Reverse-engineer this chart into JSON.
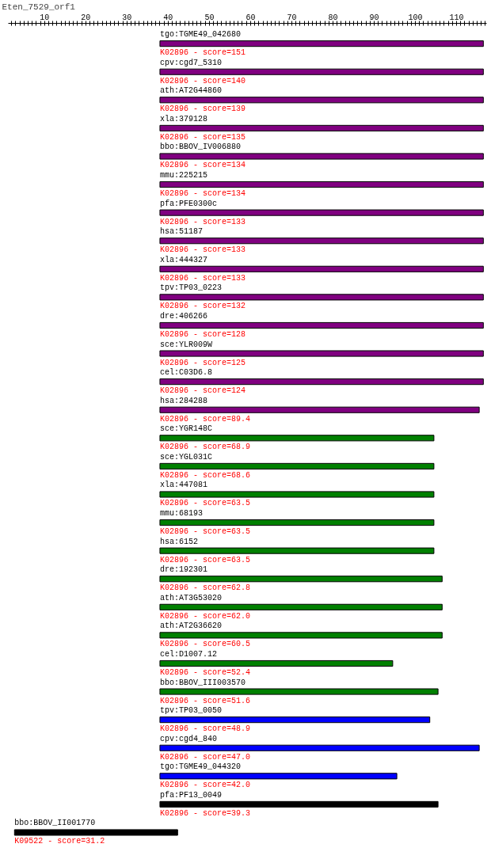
{
  "chart_data": {
    "type": "bar",
    "orientation": "horizontal",
    "title": "Eten_7529_orf1",
    "categories": [
      "tgo:TGME49_042680",
      "cpv:cgd7_5310",
      "ath:AT2G44860",
      "xla:379128",
      "bbo:BBOV_IV006880",
      "mmu:225215",
      "pfa:PFE0300c",
      "hsa:51187",
      "xla:444327",
      "tpv:TP03_0223",
      "dre:406266",
      "sce:YLR009W",
      "cel:C03D6.8",
      "hsa:284288",
      "sce:YGR148C",
      "sce:YGL031C",
      "xla:447081",
      "mmu:68193",
      "hsa:6152",
      "dre:192301",
      "ath:AT3G53020",
      "ath:AT2G36620",
      "cel:D1007.12",
      "bbo:BBOV_III003570",
      "tpv:TP03_0050",
      "cpv:cgd4_840",
      "tgo:TGME49_044320",
      "pfa:PF13_0049",
      "bbo:BBOV_II001770"
    ],
    "base": [
      38,
      38,
      38,
      38,
      38,
      38,
      38,
      38,
      38,
      38,
      38,
      38,
      38,
      38,
      38,
      38,
      38,
      38,
      38,
      38,
      38,
      38,
      38,
      38,
      38,
      38,
      38,
      38,
      2.7
    ],
    "values": [
      78.5,
      78.5,
      78.5,
      78.5,
      78.5,
      78.5,
      78.5,
      78.5,
      78.5,
      78.5,
      78.5,
      78.5,
      78.5,
      77.5,
      66.5,
      66.5,
      66.5,
      66.5,
      66.5,
      68.5,
      68.5,
      68.5,
      56.5,
      67.5,
      65.5,
      77.5,
      57.5,
      67.5,
      39.6
    ],
    "colors": [
      "#800080",
      "#800080",
      "#800080",
      "#800080",
      "#800080",
      "#800080",
      "#800080",
      "#800080",
      "#800080",
      "#800080",
      "#800080",
      "#800080",
      "#800080",
      "#800080",
      "#008000",
      "#008000",
      "#008000",
      "#008000",
      "#008000",
      "#008000",
      "#008000",
      "#008000",
      "#008000",
      "#008000",
      "#0000ff",
      "#0000ff",
      "#0000ff",
      "#000000",
      "#000000"
    ],
    "value_labels": [
      "K02896 - score=151",
      "K02896 - score=140",
      "K02896 - score=139",
      "K02896 - score=135",
      "K02896 - score=134",
      "K02896 - score=134",
      "K02896 - score=133",
      "K02896 - score=133",
      "K02896 - score=133",
      "K02896 - score=132",
      "K02896 - score=128",
      "K02896 - score=125",
      "K02896 - score=124",
      "K02896 - score=89.4",
      "K02896 - score=68.9",
      "K02896 - score=68.6",
      "K02896 - score=63.5",
      "K02896 - score=63.5",
      "K02896 - score=63.5",
      "K02896 - score=62.8",
      "K02896 - score=62.0",
      "K02896 - score=60.5",
      "K02896 - score=52.4",
      "K02896 - score=51.6",
      "K02896 - score=48.9",
      "K02896 - score=47.0",
      "K02896 - score=42.0",
      "K02896 - score=39.3",
      "K09522 - score=31.2"
    ],
    "xlim": [
      1.2,
      117.3
    ],
    "xticks": [
      {
        "value": 2,
        "label": null
      },
      {
        "value": 3,
        "label": null
      },
      {
        "value": 4,
        "label": null
      },
      {
        "value": 5,
        "label": null
      },
      {
        "value": 6,
        "label": null
      },
      {
        "value": 7,
        "label": null
      },
      {
        "value": 8,
        "label": null
      },
      {
        "value": 9,
        "label": null
      },
      10,
      {
        "value": 11,
        "label": null
      },
      {
        "value": 12,
        "label": null
      },
      {
        "value": 13,
        "label": null
      },
      {
        "value": 14,
        "label": null
      },
      {
        "value": 15,
        "label": null
      },
      {
        "value": 16,
        "label": null
      },
      {
        "value": 17,
        "label": null
      },
      {
        "value": 18,
        "label": null
      },
      {
        "value": 19,
        "label": null
      },
      20,
      {
        "value": 21,
        "label": null
      },
      {
        "value": 22,
        "label": null
      },
      {
        "value": 23,
        "label": null
      },
      {
        "value": 24,
        "label": null
      },
      {
        "value": 25,
        "label": null
      },
      {
        "value": 26,
        "label": null
      },
      {
        "value": 27,
        "label": null
      },
      {
        "value": 28,
        "label": null
      },
      {
        "value": 29,
        "label": null
      },
      30,
      {
        "value": 31,
        "label": null
      },
      {
        "value": 32,
        "label": null
      },
      {
        "value": 33,
        "label": null
      },
      {
        "value": 34,
        "label": null
      },
      {
        "value": 35,
        "label": null
      },
      {
        "value": 36,
        "label": null
      },
      {
        "value": 37,
        "label": null
      },
      {
        "value": 38,
        "label": null
      },
      {
        "value": 39,
        "label": null
      },
      40,
      {
        "value": 41,
        "label": null
      },
      {
        "value": 42,
        "label": null
      },
      {
        "value": 43,
        "label": null
      },
      {
        "value": 44,
        "label": null
      },
      {
        "value": 45,
        "label": null
      },
      {
        "value": 46,
        "label": null
      },
      {
        "value": 47,
        "label": null
      },
      {
        "value": 48,
        "label": null
      },
      {
        "value": 49,
        "label": null
      },
      50,
      {
        "value": 51,
        "label": null
      },
      {
        "value": 52,
        "label": null
      },
      {
        "value": 53,
        "label": null
      },
      {
        "value": 54,
        "label": null
      },
      {
        "value": 55,
        "label": null
      },
      {
        "value": 56,
        "label": null
      },
      {
        "value": 57,
        "label": null
      },
      {
        "value": 58,
        "label": null
      },
      {
        "value": 59,
        "label": null
      },
      60,
      {
        "value": 61,
        "label": null
      },
      {
        "value": 62,
        "label": null
      },
      {
        "value": 63,
        "label": null
      },
      {
        "value": 64,
        "label": null
      },
      {
        "value": 65,
        "label": null
      },
      {
        "value": 66,
        "label": null
      },
      {
        "value": 67,
        "label": null
      },
      {
        "value": 68,
        "label": null
      },
      {
        "value": 69,
        "label": null
      },
      70,
      {
        "value": 71,
        "label": null
      },
      {
        "value": 72,
        "label": null
      },
      {
        "value": 73,
        "label": null
      },
      {
        "value": 74,
        "label": null
      },
      {
        "value": 75,
        "label": null
      },
      {
        "value": 76,
        "label": null
      },
      {
        "value": 77,
        "label": null
      },
      {
        "value": 78,
        "label": null
      },
      {
        "value": 79,
        "label": null
      },
      80,
      {
        "value": 81,
        "label": null
      },
      {
        "value": 82,
        "label": null
      },
      {
        "value": 83,
        "label": null
      },
      {
        "value": 84,
        "label": null
      },
      {
        "value": 85,
        "label": null
      },
      {
        "value": 86,
        "label": null
      },
      {
        "value": 87,
        "label": null
      },
      {
        "value": 88,
        "label": null
      },
      {
        "value": 89,
        "label": null
      },
      90,
      {
        "value": 91,
        "label": null
      },
      {
        "value": 92,
        "label": null
      },
      {
        "value": 93,
        "label": null
      },
      {
        "value": 94,
        "label": null
      },
      {
        "value": 95,
        "label": null
      },
      {
        "value": 96,
        "label": null
      },
      {
        "value": 97,
        "label": null
      },
      {
        "value": 98,
        "label": null
      },
      {
        "value": 99,
        "label": null
      },
      100,
      {
        "value": 101,
        "label": null
      },
      {
        "value": 102,
        "label": null
      },
      {
        "value": 103,
        "label": null
      },
      {
        "value": 104,
        "label": null
      },
      {
        "value": 105,
        "label": null
      },
      {
        "value": 106,
        "label": null
      },
      {
        "value": 107,
        "label": null
      },
      {
        "value": 108,
        "label": null
      },
      {
        "value": 109,
        "label": null
      },
      110,
      {
        "value": 111,
        "label": null
      },
      {
        "value": 112,
        "label": null
      },
      {
        "value": 113,
        "label": null
      },
      {
        "value": 114,
        "label": null
      },
      {
        "value": 115,
        "label": null
      },
      {
        "value": 116,
        "label": null
      },
      {
        "value": 117,
        "label": null
      }
    ],
    "tick_labels": "x",
    "grid": false
  }
}
